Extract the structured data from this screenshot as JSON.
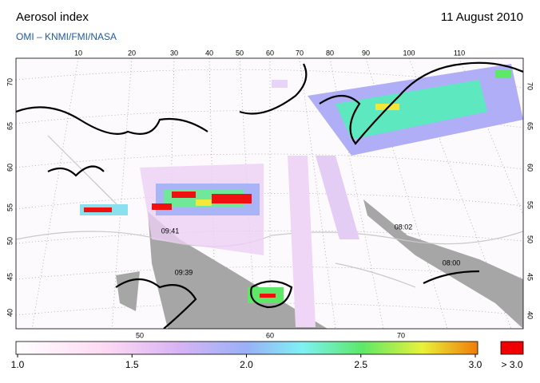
{
  "header": {
    "title": "Aerosol index",
    "date": "11 August 2010",
    "subtitle": "OMI – KNMI/FMI/NASA"
  },
  "map": {
    "top_labels": [
      "10",
      "20",
      "30",
      "40",
      "50",
      "60",
      "70",
      "80",
      "90",
      "100",
      "110"
    ],
    "bottom_labels": [
      "50",
      "60",
      "70"
    ],
    "left_labels": [
      "70",
      "65",
      "60",
      "55",
      "50",
      "45",
      "40"
    ],
    "right_labels": [
      "70",
      "65",
      "60",
      "55",
      "50",
      "45",
      "40"
    ],
    "times": [
      "09:41",
      "09:39",
      "08:02",
      "08:00"
    ]
  },
  "colorbar": {
    "labels": [
      "1.0",
      "1.5",
      "2.0",
      "2.5",
      "3.0"
    ],
    "overflow_label": "> 3.0"
  }
}
